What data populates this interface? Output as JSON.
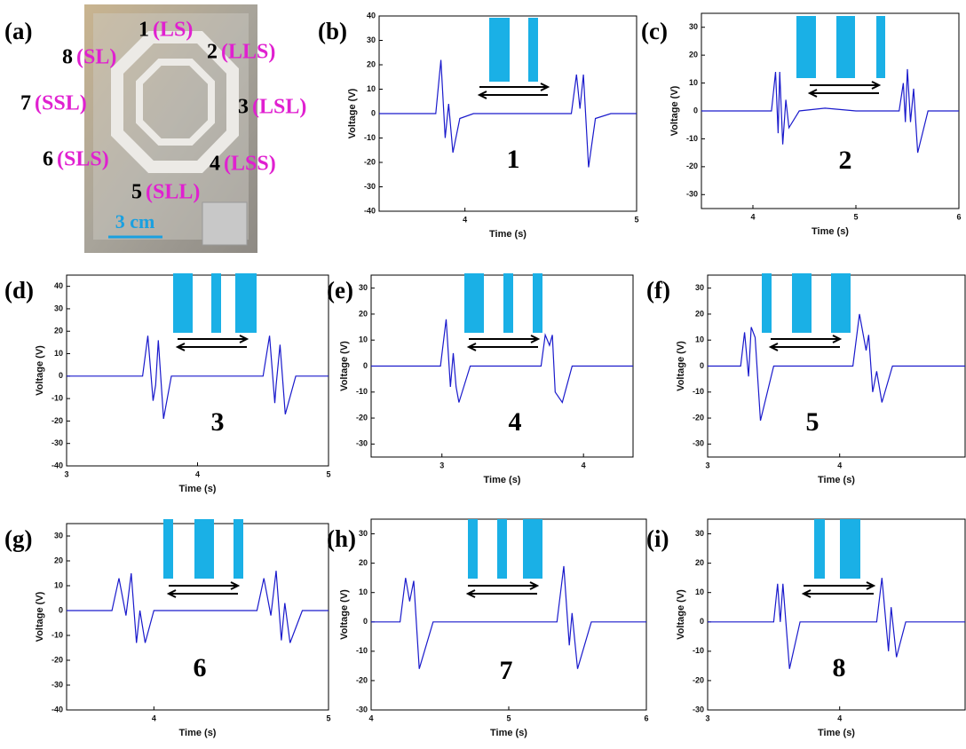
{
  "photo": {
    "panel_label": "(a)",
    "scale_bar": "3 cm",
    "labels": [
      {
        "number": "1",
        "code": "(LS)"
      },
      {
        "number": "2",
        "code": "(LLS)"
      },
      {
        "number": "3",
        "code": "(LSL)"
      },
      {
        "number": "4",
        "code": "(LSS)"
      },
      {
        "number": "5",
        "code": "(SLL)"
      },
      {
        "number": "6",
        "code": "(SLS)"
      },
      {
        "number": "7",
        "code": "(SSL)"
      },
      {
        "number": "8",
        "code": "(SL)"
      }
    ]
  },
  "chart_data": [
    {
      "type": "line",
      "panel_label": "(b)",
      "annotation": "1",
      "x_label": "Time (s)",
      "y_label": "Voltage (V)",
      "x": [
        3.5,
        3.83,
        3.86,
        3.885,
        3.905,
        3.93,
        3.97,
        4.05,
        4.62,
        4.65,
        4.67,
        4.69,
        4.72,
        4.76,
        4.85,
        5
      ],
      "series": [
        {
          "color": "#1a1acc",
          "values": [
            0,
            0,
            22,
            -10,
            4,
            -16,
            -2,
            0,
            0,
            16,
            2,
            16,
            -22,
            -2,
            0,
            0
          ]
        }
      ],
      "xlim": [
        3.5,
        5
      ],
      "xticks": [
        4,
        5
      ],
      "ylim": [
        -40,
        40
      ],
      "yticks": [
        -40,
        -30,
        -20,
        -10,
        0,
        10,
        20,
        30,
        40
      ]
    },
    {
      "type": "line",
      "panel_label": "(c)",
      "annotation": "2",
      "x_label": "Time (s)",
      "y_label": "Voltage (V)",
      "x": [
        3.5,
        4.18,
        4.22,
        4.245,
        4.26,
        4.29,
        4.32,
        4.35,
        4.45,
        4.7,
        5.0,
        5.3,
        5.42,
        5.46,
        5.48,
        5.5,
        5.53,
        5.56,
        5.6,
        5.7,
        6
      ],
      "series": [
        {
          "color": "#1a1acc",
          "values": [
            0,
            0,
            14,
            -8,
            14,
            -12,
            4,
            -6,
            0,
            1,
            0,
            0,
            0,
            10,
            -4,
            15,
            -4,
            8,
            -15,
            0,
            0
          ]
        }
      ],
      "xlim": [
        3.5,
        6
      ],
      "xticks": [
        4,
        5,
        6
      ],
      "ylim": [
        -35,
        35
      ],
      "yticks": [
        -30,
        -20,
        -10,
        0,
        10,
        20,
        30
      ]
    },
    {
      "type": "line",
      "panel_label": "(d)",
      "annotation": "3",
      "x_label": "Time (s)",
      "y_label": "Voltage (V)",
      "x": [
        3,
        3.58,
        3.62,
        3.66,
        3.68,
        3.7,
        3.74,
        3.8,
        4.5,
        4.55,
        4.59,
        4.6,
        4.63,
        4.67,
        4.75,
        5
      ],
      "series": [
        {
          "color": "#1a1acc",
          "values": [
            0,
            0,
            18,
            -11,
            -4,
            16,
            -19,
            0,
            0,
            18,
            -12,
            -4,
            14,
            -17,
            0,
            0
          ]
        }
      ],
      "xlim": [
        3,
        5
      ],
      "xticks": [
        3,
        4,
        5
      ],
      "ylim": [
        -40,
        45
      ],
      "yticks": [
        -40,
        -30,
        -20,
        -10,
        0,
        10,
        20,
        30,
        40
      ]
    },
    {
      "type": "line",
      "panel_label": "(e)",
      "annotation": "4",
      "x_label": "Time (s)",
      "y_label": "Voltage (V)",
      "x": [
        2.5,
        2.99,
        3.03,
        3.06,
        3.08,
        3.1,
        3.12,
        3.2,
        3.7,
        3.73,
        3.76,
        3.78,
        3.8,
        3.85,
        3.92,
        4.35
      ],
      "series": [
        {
          "color": "#1a1acc",
          "values": [
            0,
            0,
            18,
            -8,
            5,
            -8,
            -14,
            0,
            0,
            12,
            8,
            12,
            -10,
            -14,
            0,
            0
          ]
        }
      ],
      "xlim": [
        2.5,
        4.35
      ],
      "xticks": [
        3,
        4
      ],
      "ylim": [
        -35,
        35
      ],
      "yticks": [
        -30,
        -20,
        -10,
        0,
        10,
        20,
        30
      ]
    },
    {
      "type": "line",
      "panel_label": "(f)",
      "annotation": "5",
      "x_label": "Time (s)",
      "y_label": "Voltage (V)",
      "x": [
        3,
        3.25,
        3.28,
        3.31,
        3.33,
        3.36,
        3.4,
        3.5,
        4.1,
        4.15,
        4.2,
        4.22,
        4.25,
        4.28,
        4.32,
        4.4,
        4.95
      ],
      "series": [
        {
          "color": "#1a1acc",
          "values": [
            0,
            0,
            13,
            -4,
            15,
            11,
            -21,
            0,
            0,
            20,
            6,
            12,
            -10,
            -2,
            -14,
            0,
            0
          ]
        }
      ],
      "xlim": [
        3,
        4.95
      ],
      "xticks": [
        3,
        4
      ],
      "ylim": [
        -35,
        35
      ],
      "yticks": [
        -30,
        -20,
        -10,
        0,
        10,
        20,
        30
      ]
    },
    {
      "type": "line",
      "panel_label": "(g)",
      "annotation": "6",
      "x_label": "Time (s)",
      "y_label": "Voltage (V)",
      "x": [
        3.5,
        3.76,
        3.8,
        3.84,
        3.87,
        3.9,
        3.92,
        3.95,
        4.0,
        4.59,
        4.63,
        4.67,
        4.7,
        4.73,
        4.75,
        4.78,
        4.85,
        5
      ],
      "series": [
        {
          "color": "#1a1acc",
          "values": [
            0,
            0,
            13,
            -2,
            15,
            -13,
            0,
            -13,
            0,
            0,
            13,
            -2,
            16,
            -12,
            3,
            -13,
            0,
            0
          ]
        }
      ],
      "xlim": [
        3.5,
        5
      ],
      "xticks": [
        4,
        5
      ],
      "ylim": [
        -40,
        35
      ],
      "yticks": [
        -40,
        -30,
        -20,
        -10,
        0,
        10,
        20,
        30
      ]
    },
    {
      "type": "line",
      "panel_label": "(h)",
      "annotation": "7",
      "x_label": "Time (s)",
      "y_label": "Voltage (V)",
      "x": [
        4,
        4.21,
        4.25,
        4.28,
        4.31,
        4.35,
        4.45,
        5.35,
        5.4,
        5.44,
        5.46,
        5.5,
        5.6,
        6
      ],
      "series": [
        {
          "color": "#1a1acc",
          "values": [
            0,
            0,
            15,
            7,
            14,
            -16,
            0,
            0,
            19,
            -8,
            3,
            -16,
            0,
            0
          ]
        }
      ],
      "xlim": [
        4,
        6
      ],
      "xticks": [
        4,
        5,
        6
      ],
      "ylim": [
        -30,
        35
      ],
      "yticks": [
        -30,
        -20,
        -10,
        0,
        10,
        20,
        30
      ]
    },
    {
      "type": "line",
      "panel_label": "(i)",
      "annotation": "8",
      "x_label": "Time (s)",
      "y_label": "Voltage (V)",
      "x": [
        3,
        3.5,
        3.53,
        3.55,
        3.57,
        3.62,
        3.7,
        4.28,
        4.32,
        4.37,
        4.39,
        4.43,
        4.5,
        4.95
      ],
      "series": [
        {
          "color": "#1a1acc",
          "values": [
            0,
            0,
            13,
            0,
            13,
            -16,
            0,
            0,
            15,
            -10,
            5,
            -12,
            0,
            0
          ]
        }
      ],
      "xlim": [
        3,
        4.95
      ],
      "xticks": [
        3,
        4
      ],
      "ylim": [
        -30,
        35
      ],
      "yticks": [
        -30,
        -20,
        -10,
        0,
        10,
        20,
        30
      ]
    }
  ]
}
